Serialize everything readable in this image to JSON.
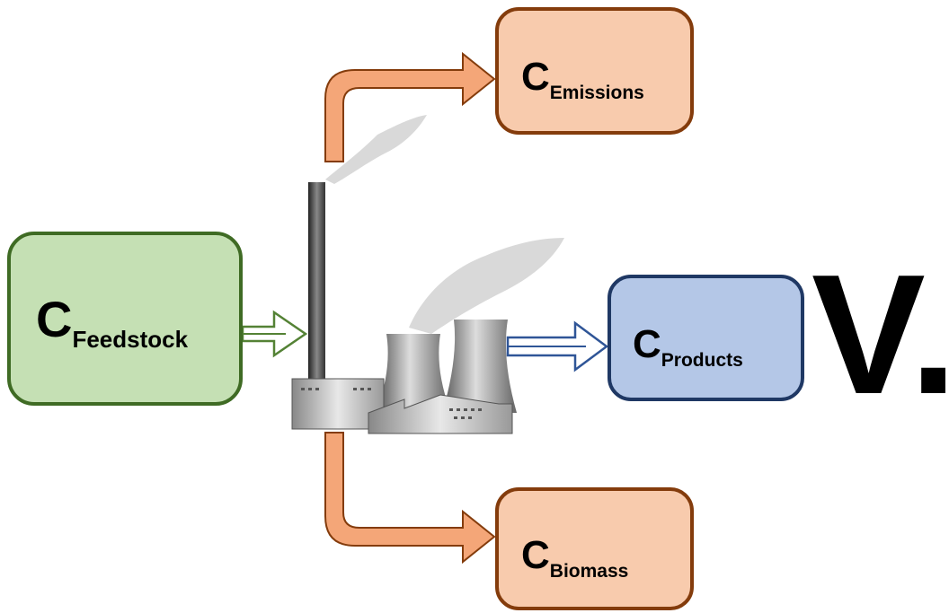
{
  "nodes": [
    {
      "symbol": "C",
      "subscript": "Feedstock"
    },
    {
      "symbol": "C",
      "subscript": "Emissions"
    },
    {
      "symbol": "C",
      "subscript": "Products"
    },
    {
      "symbol": "C",
      "subscript": "Biomass"
    }
  ],
  "label": "V."
}
